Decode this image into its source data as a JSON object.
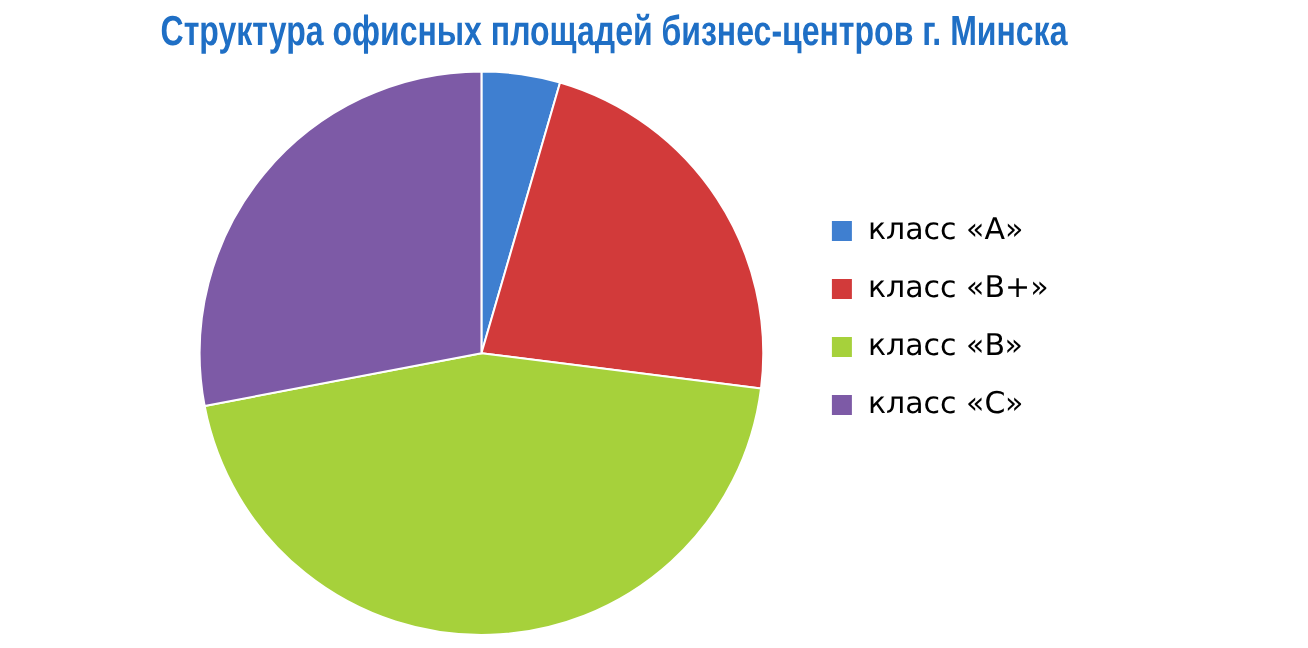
{
  "chart_data": {
    "type": "pie",
    "title": "Структура офисных площадей бизнес-центров г. Минска",
    "categories": [
      "класс «A»",
      "класс «B+»",
      "класс «B»",
      "класс «C»"
    ],
    "values": [
      4.5,
      22.5,
      45,
      28
    ],
    "colors": [
      "#3f7fd0",
      "#d23a3a",
      "#a6d13b",
      "#7d5aa6"
    ],
    "legend": "right"
  }
}
